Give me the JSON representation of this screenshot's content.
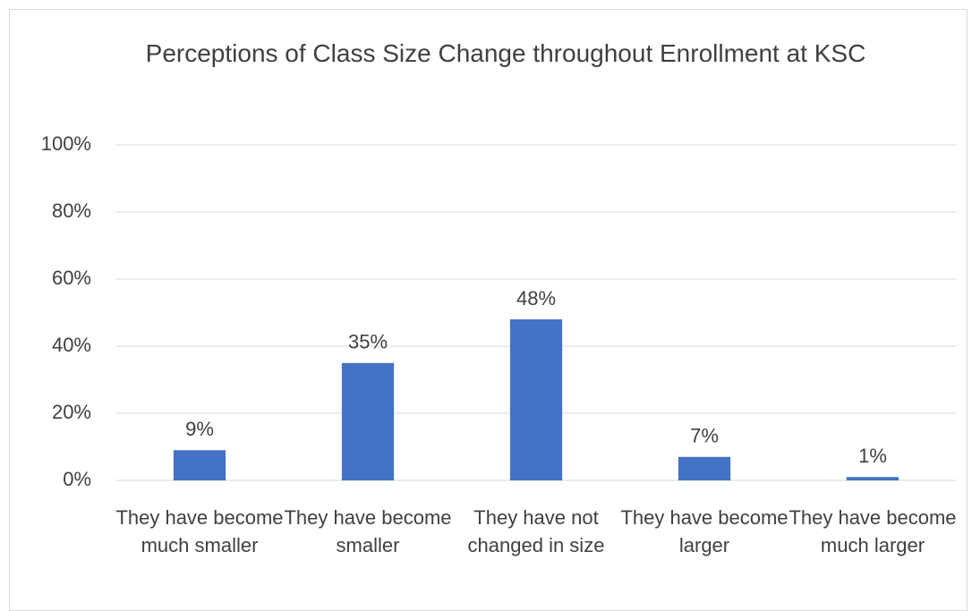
{
  "chart_data": {
    "type": "bar",
    "title": "Perceptions of Class Size Change throughout Enrollment at KSC",
    "categories": [
      "They have become much smaller",
      "They have become smaller",
      "They have not changed in size",
      "They have become larger",
      "They have become much larger"
    ],
    "values": [
      9,
      35,
      48,
      7,
      1
    ],
    "value_labels": [
      "9%",
      "35%",
      "48%",
      "7%",
      "1%"
    ],
    "color": "#4472c4",
    "ylim": [
      0,
      100
    ],
    "yticks": [
      {
        "value": 0,
        "label": "0%"
      },
      {
        "value": 20,
        "label": "20%"
      },
      {
        "value": 40,
        "label": "40%"
      },
      {
        "value": 60,
        "label": "60%"
      },
      {
        "value": 80,
        "label": "80%"
      },
      {
        "value": 100,
        "label": "100%"
      }
    ],
    "grid": true
  }
}
